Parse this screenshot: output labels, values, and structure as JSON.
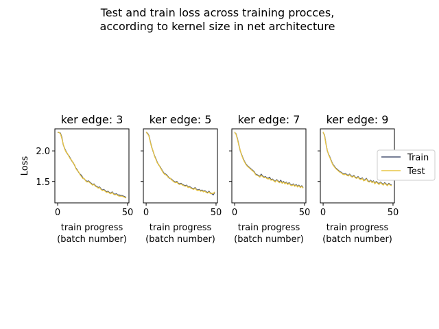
{
  "figure": {
    "title_line1": "Test and train loss across training procces,",
    "title_line2": "according to kernel size in net architecture"
  },
  "legend": {
    "train": "Train",
    "test": "Test"
  },
  "colors": {
    "train": "#4a5574",
    "test": "#e8c547",
    "axis": "#000000",
    "background": "#ffffff"
  },
  "shared_axes": {
    "ylabel": "Loss",
    "xlabel_line1": "train progress",
    "xlabel_line2": "(batch number)",
    "xlim": [
      -2,
      51
    ],
    "ylim": [
      1.15,
      2.36
    ],
    "xticks": [
      0,
      50
    ],
    "xtick_labels": [
      "0",
      "50"
    ],
    "yticks": [
      2.0,
      1.5
    ],
    "ytick_labels": [
      "2.0",
      "1.5"
    ]
  },
  "chart_data": [
    {
      "type": "line",
      "title": "ker edge: 3",
      "legend_position": "right",
      "series": [
        {
          "name": "Train",
          "x": [
            0,
            1,
            2,
            3,
            4,
            5,
            6,
            7,
            8,
            9,
            10,
            11,
            12,
            13,
            14,
            15,
            16,
            17,
            18,
            19,
            20,
            21,
            22,
            23,
            24,
            25,
            26,
            27,
            28,
            29,
            30,
            31,
            32,
            33,
            34,
            35,
            36,
            37,
            38,
            39,
            40,
            41,
            42,
            43,
            44,
            45,
            46,
            47,
            48,
            49
          ],
          "values": [
            2.3,
            2.3,
            2.29,
            2.22,
            2.1,
            2.04,
            1.99,
            1.95,
            1.92,
            1.88,
            1.84,
            1.81,
            1.77,
            1.72,
            1.69,
            1.65,
            1.62,
            1.6,
            1.56,
            1.54,
            1.52,
            1.5,
            1.51,
            1.49,
            1.47,
            1.45,
            1.46,
            1.43,
            1.42,
            1.4,
            1.41,
            1.38,
            1.36,
            1.37,
            1.35,
            1.33,
            1.34,
            1.32,
            1.31,
            1.33,
            1.3,
            1.29,
            1.3,
            1.28,
            1.28,
            1.27,
            1.27,
            1.26,
            1.25,
            1.24
          ]
        },
        {
          "name": "Test",
          "x": [
            0,
            1,
            2,
            3,
            4,
            5,
            6,
            7,
            8,
            9,
            10,
            11,
            12,
            13,
            14,
            15,
            16,
            17,
            18,
            19,
            20,
            21,
            22,
            23,
            24,
            25,
            26,
            27,
            28,
            29,
            30,
            31,
            32,
            33,
            34,
            35,
            36,
            37,
            38,
            39,
            40,
            41,
            42,
            43,
            44,
            45,
            46,
            47,
            48,
            49
          ],
          "values": [
            2.31,
            2.3,
            2.28,
            2.2,
            2.11,
            2.03,
            1.98,
            1.96,
            1.91,
            1.87,
            1.85,
            1.8,
            1.78,
            1.71,
            1.68,
            1.66,
            1.61,
            1.58,
            1.55,
            1.55,
            1.51,
            1.49,
            1.5,
            1.48,
            1.46,
            1.44,
            1.45,
            1.42,
            1.41,
            1.39,
            1.4,
            1.37,
            1.35,
            1.36,
            1.34,
            1.32,
            1.33,
            1.31,
            1.3,
            1.32,
            1.29,
            1.28,
            1.29,
            1.27,
            1.26,
            1.26,
            1.26,
            1.25,
            1.24,
            1.23
          ]
        }
      ]
    },
    {
      "type": "line",
      "title": "ker edge: 5",
      "series": [
        {
          "name": "Train",
          "x": [
            0,
            1,
            2,
            3,
            4,
            5,
            6,
            7,
            8,
            9,
            10,
            11,
            12,
            13,
            14,
            15,
            16,
            17,
            18,
            19,
            20,
            21,
            22,
            23,
            24,
            25,
            26,
            27,
            28,
            29,
            30,
            31,
            32,
            33,
            34,
            35,
            36,
            37,
            38,
            39,
            40,
            41,
            42,
            43,
            44,
            45,
            46,
            47,
            48,
            49
          ],
          "values": [
            2.3,
            2.29,
            2.25,
            2.15,
            2.06,
            1.99,
            1.92,
            1.87,
            1.81,
            1.77,
            1.74,
            1.7,
            1.66,
            1.63,
            1.62,
            1.6,
            1.57,
            1.55,
            1.54,
            1.52,
            1.5,
            1.49,
            1.5,
            1.47,
            1.46,
            1.47,
            1.45,
            1.44,
            1.43,
            1.44,
            1.41,
            1.42,
            1.4,
            1.39,
            1.38,
            1.4,
            1.37,
            1.36,
            1.37,
            1.35,
            1.36,
            1.34,
            1.35,
            1.33,
            1.32,
            1.34,
            1.31,
            1.3,
            1.28,
            1.32
          ]
        },
        {
          "name": "Test",
          "x": [
            0,
            1,
            2,
            3,
            4,
            5,
            6,
            7,
            8,
            9,
            10,
            11,
            12,
            13,
            14,
            15,
            16,
            17,
            18,
            19,
            20,
            21,
            22,
            23,
            24,
            25,
            26,
            27,
            28,
            29,
            30,
            31,
            32,
            33,
            34,
            35,
            36,
            37,
            38,
            39,
            40,
            41,
            42,
            43,
            44,
            45,
            46,
            47,
            48,
            49
          ],
          "values": [
            2.31,
            2.28,
            2.24,
            2.14,
            2.05,
            2.0,
            1.91,
            1.86,
            1.8,
            1.78,
            1.73,
            1.69,
            1.65,
            1.62,
            1.61,
            1.59,
            1.56,
            1.56,
            1.53,
            1.51,
            1.49,
            1.48,
            1.49,
            1.46,
            1.45,
            1.46,
            1.44,
            1.43,
            1.42,
            1.43,
            1.4,
            1.41,
            1.39,
            1.38,
            1.37,
            1.39,
            1.36,
            1.35,
            1.36,
            1.34,
            1.35,
            1.33,
            1.34,
            1.32,
            1.31,
            1.33,
            1.3,
            1.31,
            1.3,
            1.33
          ]
        }
      ]
    },
    {
      "type": "line",
      "title": "ker edge: 7",
      "series": [
        {
          "name": "Train",
          "x": [
            0,
            1,
            2,
            3,
            4,
            5,
            6,
            7,
            8,
            9,
            10,
            11,
            12,
            13,
            14,
            15,
            16,
            17,
            18,
            19,
            20,
            21,
            22,
            23,
            24,
            25,
            26,
            27,
            28,
            29,
            30,
            31,
            32,
            33,
            34,
            35,
            36,
            37,
            38,
            39,
            40,
            41,
            42,
            43,
            44,
            45,
            46,
            47,
            48,
            49
          ],
          "values": [
            2.3,
            2.28,
            2.2,
            2.1,
            2.0,
            1.94,
            1.88,
            1.83,
            1.79,
            1.76,
            1.74,
            1.72,
            1.7,
            1.68,
            1.66,
            1.62,
            1.61,
            1.6,
            1.58,
            1.62,
            1.59,
            1.57,
            1.58,
            1.56,
            1.55,
            1.57,
            1.53,
            1.54,
            1.52,
            1.5,
            1.53,
            1.51,
            1.49,
            1.52,
            1.48,
            1.5,
            1.47,
            1.49,
            1.46,
            1.48,
            1.45,
            1.44,
            1.46,
            1.43,
            1.45,
            1.42,
            1.44,
            1.41,
            1.43,
            1.4
          ]
        },
        {
          "name": "Test",
          "x": [
            0,
            1,
            2,
            3,
            4,
            5,
            6,
            7,
            8,
            9,
            10,
            11,
            12,
            13,
            14,
            15,
            16,
            17,
            18,
            19,
            20,
            21,
            22,
            23,
            24,
            25,
            26,
            27,
            28,
            29,
            30,
            31,
            32,
            33,
            34,
            35,
            36,
            37,
            38,
            39,
            40,
            41,
            42,
            43,
            44,
            45,
            46,
            47,
            48,
            49
          ],
          "values": [
            2.31,
            2.27,
            2.19,
            2.09,
            2.01,
            1.93,
            1.87,
            1.82,
            1.78,
            1.75,
            1.73,
            1.71,
            1.69,
            1.67,
            1.65,
            1.61,
            1.6,
            1.59,
            1.57,
            1.6,
            1.58,
            1.56,
            1.57,
            1.55,
            1.54,
            1.55,
            1.52,
            1.53,
            1.51,
            1.49,
            1.52,
            1.5,
            1.48,
            1.5,
            1.47,
            1.49,
            1.46,
            1.48,
            1.45,
            1.47,
            1.44,
            1.43,
            1.45,
            1.42,
            1.44,
            1.41,
            1.43,
            1.4,
            1.42,
            1.39
          ]
        }
      ]
    },
    {
      "type": "line",
      "title": "ker edge: 9",
      "series": [
        {
          "name": "Train",
          "x": [
            0,
            1,
            2,
            3,
            4,
            5,
            6,
            7,
            8,
            9,
            10,
            11,
            12,
            13,
            14,
            15,
            16,
            17,
            18,
            19,
            20,
            21,
            22,
            23,
            24,
            25,
            26,
            27,
            28,
            29,
            30,
            31,
            32,
            33,
            34,
            35,
            36,
            37,
            38,
            39,
            40,
            41,
            42,
            43,
            44,
            45,
            46,
            47,
            48,
            49
          ],
          "values": [
            2.3,
            2.26,
            2.12,
            2.0,
            1.94,
            1.89,
            1.83,
            1.78,
            1.75,
            1.72,
            1.7,
            1.68,
            1.66,
            1.65,
            1.63,
            1.62,
            1.63,
            1.61,
            1.6,
            1.62,
            1.59,
            1.58,
            1.6,
            1.57,
            1.56,
            1.58,
            1.55,
            1.54,
            1.56,
            1.52,
            1.53,
            1.55,
            1.51,
            1.5,
            1.52,
            1.49,
            1.51,
            1.47,
            1.5,
            1.48,
            1.46,
            1.49,
            1.47,
            1.45,
            1.48,
            1.46,
            1.44,
            1.47,
            1.45,
            1.44
          ]
        },
        {
          "name": "Test",
          "x": [
            0,
            1,
            2,
            3,
            4,
            5,
            6,
            7,
            8,
            9,
            10,
            11,
            12,
            13,
            14,
            15,
            16,
            17,
            18,
            19,
            20,
            21,
            22,
            23,
            24,
            25,
            26,
            27,
            28,
            29,
            30,
            31,
            32,
            33,
            34,
            35,
            36,
            37,
            38,
            39,
            40,
            41,
            42,
            43,
            44,
            45,
            46,
            47,
            48,
            49
          ],
          "values": [
            2.31,
            2.25,
            2.11,
            2.01,
            1.93,
            1.88,
            1.82,
            1.77,
            1.74,
            1.71,
            1.69,
            1.67,
            1.65,
            1.64,
            1.62,
            1.61,
            1.62,
            1.6,
            1.59,
            1.61,
            1.58,
            1.57,
            1.59,
            1.56,
            1.55,
            1.57,
            1.54,
            1.53,
            1.55,
            1.51,
            1.52,
            1.54,
            1.5,
            1.49,
            1.51,
            1.48,
            1.5,
            1.46,
            1.49,
            1.47,
            1.45,
            1.48,
            1.46,
            1.44,
            1.47,
            1.45,
            1.43,
            1.46,
            1.44,
            1.43
          ]
        }
      ]
    }
  ]
}
